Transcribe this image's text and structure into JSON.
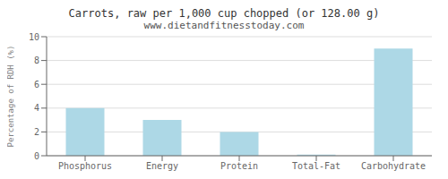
{
  "chart_data": {
    "type": "bar",
    "title": "Carrots, raw per 1,000 cup chopped (or 128.00 g)",
    "subtitle": "www.dietandfitnesstoday.com",
    "categories": [
      "Phosphorus",
      "Energy",
      "Protein",
      "Total-Fat",
      "Carbohydrate"
    ],
    "values": [
      4.0,
      3.0,
      2.0,
      0.1,
      9.0
    ],
    "color": "#add8e6",
    "ylabel": "Percentage of RDH (%)",
    "ylim": [
      0,
      10
    ],
    "yticks": [
      0,
      2,
      4,
      6,
      8,
      10
    ],
    "grid": true
  }
}
